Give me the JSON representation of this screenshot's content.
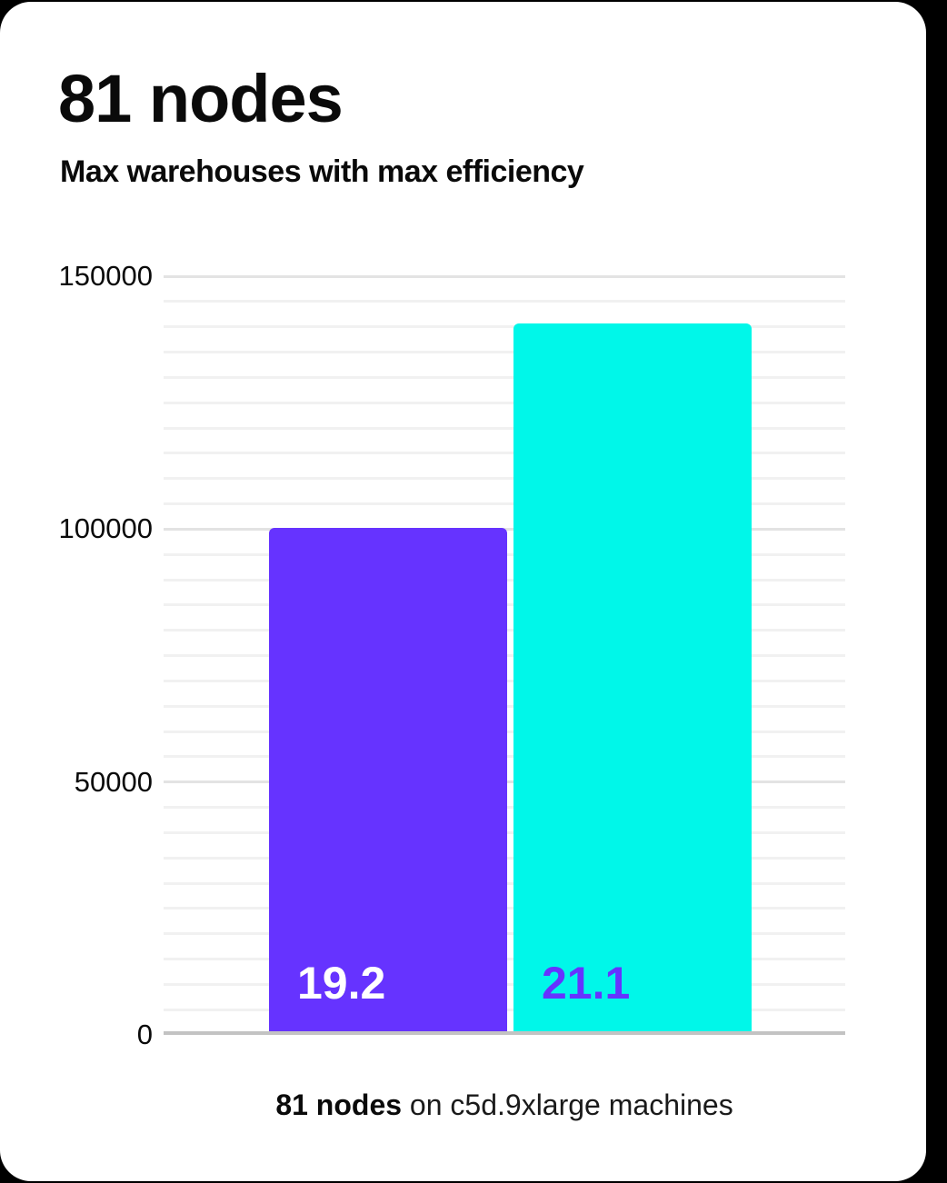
{
  "page": {
    "title": "81 nodes",
    "subtitle": "Max warehouses with max efficiency",
    "caption_bold": "81 nodes",
    "caption_rest": " on c5d.9xlarge machines"
  },
  "chart_data": {
    "type": "bar",
    "title": "81 nodes",
    "subtitle": "Max warehouses with max efficiency",
    "xlabel": "81 nodes on c5d.9xlarge machines",
    "ylabel": "",
    "categories": [
      "19.2",
      "21.1"
    ],
    "values": [
      99500,
      140000
    ],
    "bar_labels": [
      "19.2",
      "21.1"
    ],
    "bar_colors": [
      "#6633ff",
      "#00f7e9"
    ],
    "bar_label_colors": [
      "#ffffff",
      "#6633ff"
    ],
    "ylim": [
      0,
      150000
    ],
    "yticks": [
      0,
      50000,
      100000,
      150000
    ],
    "minor_grid_step": 5000,
    "major_grid_step": 50000,
    "grid": true,
    "legend": false,
    "axis_color": "#c3c3c3",
    "minor_grid_color": "#f1f1f1",
    "major_grid_color": "#e3e3e3",
    "background_color": "#ffffff",
    "outer_background_color": "#000000"
  }
}
